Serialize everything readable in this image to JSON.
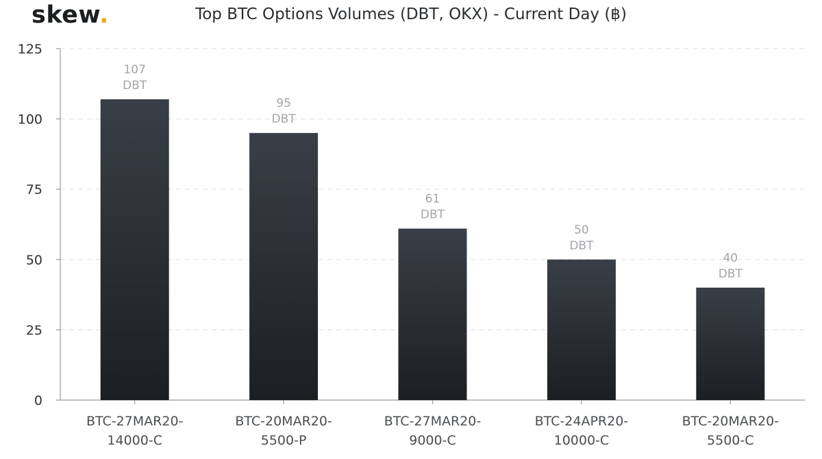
{
  "logo": {
    "text": "skew",
    "dot": "."
  },
  "chart_data": {
    "type": "bar",
    "title": "Top BTC Options Volumes (DBT, OKX) - Current Day (฿)",
    "xlabel": "",
    "ylabel": "",
    "ylim": [
      0,
      125
    ],
    "yticks": [
      0,
      25,
      50,
      75,
      100,
      125
    ],
    "grid": true,
    "categories": [
      [
        "BTC-27MAR20-",
        "14000-C"
      ],
      [
        "BTC-20MAR20-",
        "5500-P"
      ],
      [
        "BTC-27MAR20-",
        "9000-C"
      ],
      [
        "BTC-24APR20-",
        "10000-C"
      ],
      [
        "BTC-20MAR20-",
        "5500-C"
      ]
    ],
    "values": [
      107,
      95,
      61,
      50,
      40
    ],
    "data_labels": [
      [
        "107",
        "DBT"
      ],
      [
        "95",
        "DBT"
      ],
      [
        "61",
        "DBT"
      ],
      [
        "50",
        "DBT"
      ],
      [
        "40",
        "DBT"
      ]
    ],
    "colors": {
      "bar_top": "#393f47",
      "bar_bottom": "#1c1f22",
      "grid": "#e3e3e3",
      "axis": "#9a9a9a",
      "label": "#a3a5a8"
    }
  }
}
